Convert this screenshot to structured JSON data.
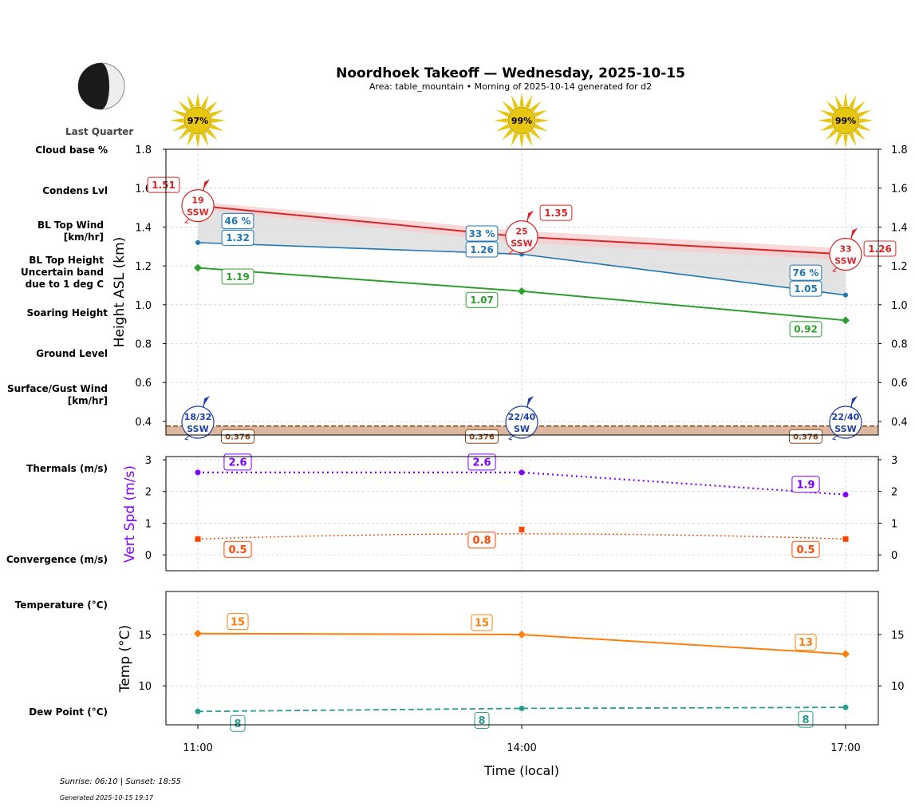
{
  "title": "Noordhoek Takeoff — Wednesday, 2025-10-15",
  "subtitle": "Area: table_mountain • Morning of 2025-10-14 generated for d2",
  "moon_phase": "Last Quarter",
  "footer": {
    "sun": "Sunrise: 06:10 | Sunset: 18:55",
    "generated": "Generated 2025-10-15 19:17"
  },
  "side_labels": {
    "cloud_base": "Cloud base %",
    "condens": "Condens Lvl",
    "bl_wind": [
      "BL Top Wind",
      "[km/hr]"
    ],
    "bl_height": [
      "BL Top Height",
      "Uncertain band",
      "due to 1 deg C"
    ],
    "soaring": "Soaring Height",
    "ground": "Ground Level",
    "surface_wind": [
      "Surface/Gust Wind",
      "[km/hr]"
    ],
    "thermals": "Thermals (m/s)",
    "convergence": "Convergence (m/s)",
    "temperature": "Temperature (°C)",
    "dewpoint": "Dew Point (°C)"
  },
  "colors": {
    "cloud": "#1f77b4",
    "bl_height": "#d62728",
    "bl_band": "#f7c9c9",
    "soaring": "#2ca02c",
    "ground": "#8b4513",
    "ground_fill": "#ddb8a0",
    "surface_wind": "#1f3fa5",
    "thermals": "#7f00ff",
    "convergence": "#ff4500",
    "temperature": "#ff7f0e",
    "dewpoint": "#2a9d8f",
    "sun": "#e6c60e",
    "gray_fill": "#d9d9d9"
  },
  "chart_data": [
    {
      "type": "line",
      "ylabel": "Height ASL (km)",
      "ylim": [
        0.33,
        1.8
      ],
      "yticks": [
        0.4,
        0.6,
        0.8,
        1.0,
        1.2,
        1.4,
        1.6,
        1.8
      ],
      "x": [
        "11:00",
        "14:00",
        "17:00"
      ],
      "sun_percent": [
        "97%",
        "99%",
        "99%"
      ],
      "series": [
        {
          "key": "bl_top",
          "values": [
            1.51,
            1.35,
            1.26
          ],
          "band_upper": [
            1.53,
            1.38,
            1.29
          ],
          "labels": [
            "1.51",
            "1.35",
            "1.26"
          ]
        },
        {
          "key": "condens",
          "values": [
            1.32,
            1.26,
            1.05
          ],
          "labels": [
            "1.32",
            "1.26",
            "1.05"
          ],
          "cloud_pct": [
            "46 %",
            "33 %",
            "76 %"
          ]
        },
        {
          "key": "soaring",
          "values": [
            1.19,
            1.07,
            0.92
          ],
          "labels": [
            "1.19",
            "1.07",
            "0.92"
          ]
        },
        {
          "key": "ground",
          "values": [
            0.376,
            0.376,
            0.376
          ],
          "labels": [
            "0.376",
            "0.376",
            "0.376"
          ]
        }
      ],
      "bl_wind": [
        {
          "speed": "19",
          "dir": "SSW"
        },
        {
          "speed": "25",
          "dir": "SSW"
        },
        {
          "speed": "33",
          "dir": "SSW"
        }
      ],
      "surface_wind": [
        {
          "speed": "18/32",
          "dir": "SSW"
        },
        {
          "speed": "22/40",
          "dir": "SW"
        },
        {
          "speed": "22/40",
          "dir": "SSW"
        }
      ]
    },
    {
      "type": "line",
      "ylabel": "Vert Spd (m/s)",
      "ylim": [
        -0.5,
        3.1
      ],
      "yticks": [
        0,
        1,
        2,
        3
      ],
      "x": [
        "11:00",
        "14:00",
        "17:00"
      ],
      "series": [
        {
          "key": "thermals",
          "values": [
            2.6,
            2.6,
            1.9
          ],
          "labels": [
            "2.6",
            "2.6",
            "1.9"
          ]
        },
        {
          "key": "convergence",
          "values": [
            0.5,
            0.8,
            0.5
          ],
          "labels": [
            "0.5",
            "0.8",
            "0.5"
          ]
        }
      ]
    },
    {
      "type": "line",
      "ylabel": "Temp (°C)",
      "xlabel": "Time (local)",
      "ylim": [
        6.2,
        19.2
      ],
      "yticks": [
        10,
        15
      ],
      "x": [
        "11:00",
        "14:00",
        "17:00"
      ],
      "series": [
        {
          "key": "temperature",
          "values": [
            15.1,
            15.0,
            13.1
          ],
          "labels": [
            "15",
            "15",
            "13"
          ]
        },
        {
          "key": "dewpoint",
          "values": [
            7.5,
            7.8,
            7.9
          ],
          "labels": [
            "8",
            "8",
            "8"
          ]
        }
      ]
    }
  ]
}
